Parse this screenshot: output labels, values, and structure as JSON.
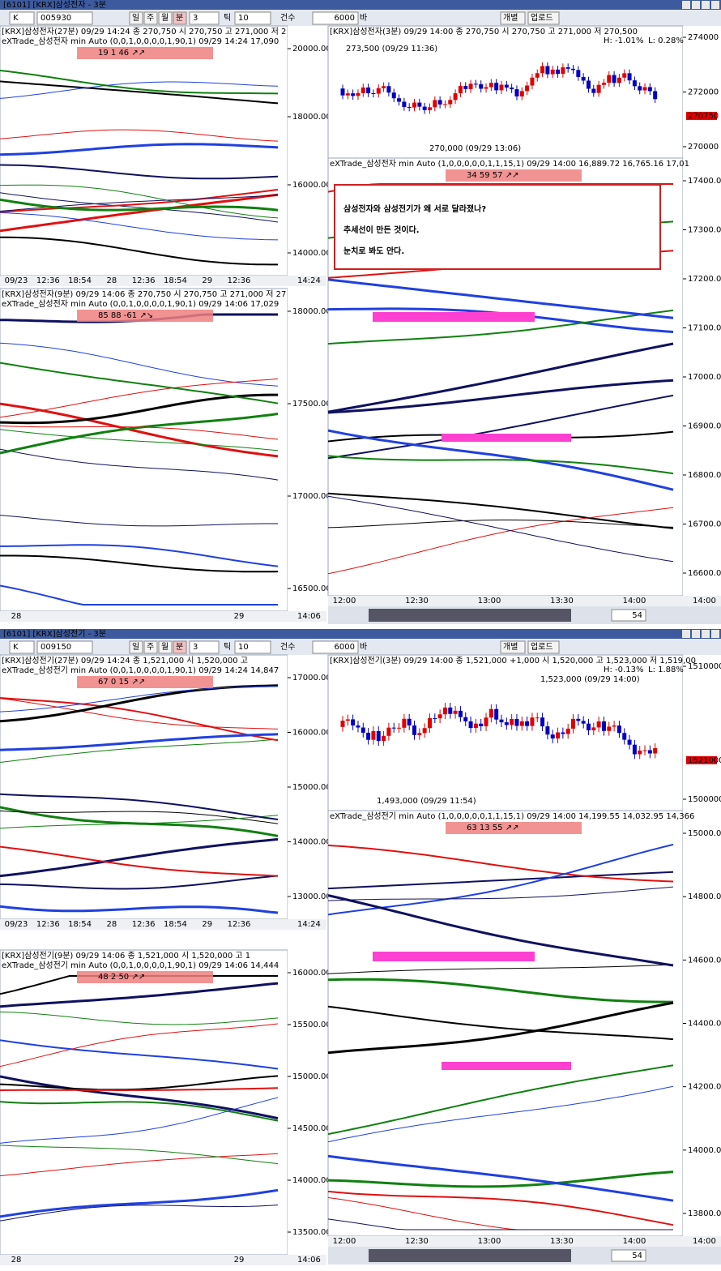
{
  "annotation": [
    "삼성전자와 삼성전기가 왜 서로 달라졌나?",
    "추세선이 만든 것이다.",
    "눈치로 봐도 안다."
  ],
  "windows": [
    {
      "title": "[6101] [KRX]삼성전자 - 3분",
      "market": "K",
      "code": "005930",
      "periods": [
        "일",
        "주",
        "월",
        "분"
      ],
      "period_value": "3",
      "tick_label": "틱",
      "tick_value": "10",
      "count_label": "건수",
      "count_value": "6000",
      "count_unit": "바",
      "buttons": [
        "개별",
        "업로드"
      ],
      "panels": [
        {
          "header": "[KRX]삼성전자(27분) 09/29 14:24 종 270,750 시 270,750 고 271,000 저 2",
          "sub": "eXTrade_삼성전자 min Auto (0,0,1,0,0,0,0,1,90,1) 09/29 14:24 17,090",
          "badge": "19 1 46 ↗↗",
          "yticks": [
            "20000.00",
            "18000.00",
            "16000.00",
            "14000.00"
          ],
          "xlabels": [
            "09/23",
            "12:36",
            "18:54",
            "28",
            "12:36",
            "18:54",
            "29",
            "12:36"
          ],
          "time": "14:24"
        },
        {
          "header": "[KRX]삼성전자(9분) 09/29 14:06 종 270,750 시 270,750 고 271,000 저 27",
          "sub": "eXTrade_삼성전자 min Auto (0,0,1,0,0,0,0,1,90,1) 09/29 14:06 17,029",
          "badge": "85 88 -61 ↗↘",
          "yticks": [
            "18000.00",
            "17500.00",
            "17000.00",
            "16500.00"
          ],
          "xlabels": [
            "28",
            "29"
          ],
          "time": "14:06"
        },
        {
          "header": "[KRX]삼성전자(3분) 09/29 14:00 종 270,750 시 270,750 고 271,000 저 270,500",
          "high_pct": "H: -1.01%",
          "low_pct": "L: 0.28%",
          "high_note": "273,500 (09/29 11:36)",
          "low_note": "270,000 (09/29 13:06)",
          "yticks": [
            "274000",
            "272000",
            "270000"
          ],
          "tag": "270750"
        },
        {
          "sub": "eXTrade_삼성전자 min Auto (1,0,0,0,0,0,1,1,15,1) 09/29 14:00 16,889.72 16,765.16 17,01",
          "badge": "34 59 57 ↗↗",
          "yticks": [
            "17400.00",
            "17300.00",
            "17200.00",
            "17100.00",
            "17000.00",
            "16900.00",
            "16800.00",
            "16700.00",
            "16600.00"
          ],
          "xlabels": [
            "12:00",
            "12:30",
            "13:00",
            "13:30",
            "14:00"
          ],
          "time": "14:00",
          "scroll": "54"
        }
      ]
    },
    {
      "title": "[6101] [KRX]삼성전기 - 3분",
      "market": "K",
      "code": "009150",
      "periods": [
        "일",
        "주",
        "월",
        "분"
      ],
      "period_value": "3",
      "tick_label": "틱",
      "tick_value": "10",
      "count_label": "건수",
      "count_value": "6000",
      "count_unit": "바",
      "buttons": [
        "개별",
        "업로드"
      ],
      "panels": [
        {
          "header": "[KRX]삼성전기(27분) 09/29 14:24 종 1,521,000 시 1,520,000 고",
          "sub": "eXTrade_삼성전기 min Auto (0,0,1,0,0,0,0,1,90,1) 09/29 14:24 14,847",
          "badge": "67 0 15 ↗↗",
          "yticks": [
            "17000.00",
            "16000.00",
            "15000.00",
            "14000.00",
            "13000.00"
          ],
          "xlabels": [
            "09/23",
            "12:36",
            "18:54",
            "28",
            "12:36",
            "18:54",
            "29",
            "12:36"
          ],
          "time": "14:24"
        },
        {
          "header": "[KRX]삼성전기(9분) 09/29 14:06 종 1,521,000 시 1,520,000 고 1",
          "sub": "eXTrade_삼성전기 min Auto (0,0,1,0,0,0,0,1,90,1) 09/29 14:06 14,444",
          "badge": "48 2 50 ↗↗",
          "yticks": [
            "16000.00",
            "15500.00",
            "15000.00",
            "14500.00",
            "14000.00",
            "13500.00"
          ],
          "xlabels": [
            "28",
            "29"
          ],
          "time": "14:06"
        },
        {
          "header": "[KRX]삼성전기(3분) 09/29 14:00 종 1,521,000 +1,000 시 1,520,000 고 1,523,000 저 1,519,00",
          "high_pct": "H: -0.13%",
          "low_pct": "L: 1.88%",
          "high_note": "1,523,000 (09/29 14:00)",
          "low_note": "1,493,000 (09/29 11:54)",
          "yticks": [
            "1510000",
            "1500000"
          ],
          "tag": "1521000"
        },
        {
          "sub": "eXTrade_삼성전기 min Auto (1,0,0,0,0,0,1,1,15,1) 09/29 14:00 14,199.55 14,032.95 14,366",
          "badge": "63 13 55 ↗↗",
          "yticks": [
            "15000.00",
            "14800.00",
            "14600.00",
            "14400.00",
            "14200.00",
            "14000.00",
            "13800.00"
          ],
          "xlabels": [
            "12:00",
            "12:30",
            "13:00",
            "13:30",
            "14:00"
          ],
          "time": "14:00",
          "scroll": "54"
        }
      ]
    }
  ]
}
